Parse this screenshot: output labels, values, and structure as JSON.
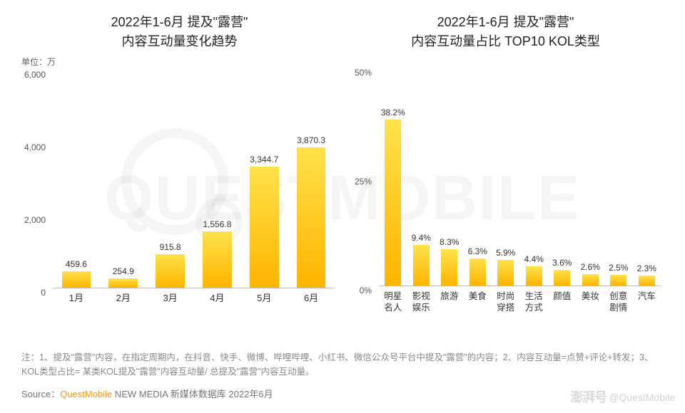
{
  "watermark_text": "QUESTMOBILE",
  "left_chart": {
    "type": "bar",
    "title_line1": "2022年1-6月 提及\"露营\"",
    "title_line2": "内容互动量变化趋势",
    "unit_label": "单位：万",
    "ymax": 6000,
    "yticks": [
      0,
      2000,
      4000,
      6000
    ],
    "ytick_labels": [
      "0",
      "2,000",
      "4,000",
      "6,000"
    ],
    "categories": [
      "1月",
      "2月",
      "3月",
      "4月",
      "5月",
      "6月"
    ],
    "values": [
      459.6,
      254.9,
      915.8,
      1556.8,
      3344.7,
      3870.3
    ],
    "value_labels": [
      "459.6",
      "254.9",
      "915.8",
      "1,556.8",
      "3,344.7",
      "3,870.3"
    ],
    "bar_gradient_top": "#ffe24a",
    "bar_gradient_bottom": "#ffb400",
    "axis_color": "#bbbbbb",
    "text_color": "#333333"
  },
  "right_chart": {
    "type": "bar",
    "title_line1": "2022年1-6月 提及\"露营\"",
    "title_line2": "内容互动量占比 TOP10 KOL类型",
    "ymax": 50,
    "yticks": [
      0,
      25,
      50
    ],
    "ytick_labels": [
      "0%",
      "25%",
      "50%"
    ],
    "categories": [
      "明星\n名人",
      "影视\n娱乐",
      "旅游",
      "美食",
      "时尚\n穿搭",
      "生活\n方式",
      "颜值",
      "美妆",
      "创意\n剧情",
      "汽车"
    ],
    "values": [
      38.2,
      9.4,
      8.3,
      6.3,
      5.9,
      4.4,
      3.6,
      2.6,
      2.5,
      2.3
    ],
    "value_labels": [
      "38.2%",
      "9.4%",
      "8.3%",
      "6.3%",
      "5.9%",
      "4.4%",
      "3.6%",
      "2.6%",
      "2.5%",
      "2.3%"
    ],
    "bar_gradient_top": "#ffe24a",
    "bar_gradient_bottom": "#ffb400",
    "axis_color": "#bbbbbb",
    "text_color": "#333333"
  },
  "footnote": "注：1、提及\"露营\"内容，在指定周期内，在抖音、快手、微博、哔哩哔哩、小红书、微信公众号平台中提及\"露营\"的内容；2、内容互动量=点赞+评论+转发；3、KOL类型占比= 某类KOL提及\"露营\"内容互动量/ 总提及\"露营\"内容互动量。",
  "source_prefix": "Source：",
  "source_brand": "QuestMobile",
  "source_suffix": " NEW MEDIA 新媒体数据库 2022年6月",
  "corner_bubble": "澎湃号",
  "corner_handle": "@QuestMobile"
}
